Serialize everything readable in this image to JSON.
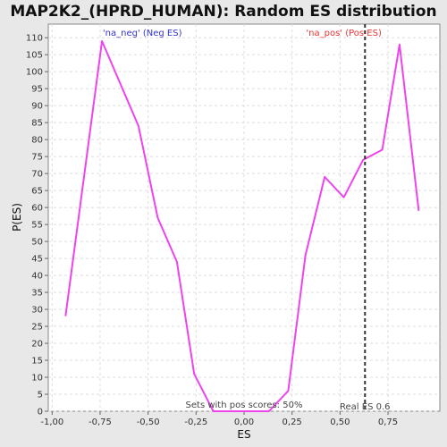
{
  "chart_data": {
    "type": "line",
    "title": "MAP2K2_(HPRD_HUMAN): Random ES distribution",
    "xlabel": "ES",
    "ylabel": "P(ES)",
    "xlim": [
      -1.02,
      1.02
    ],
    "ylim": [
      0,
      114
    ],
    "grid": true,
    "x_ticks": [
      {
        "value": -1.0,
        "label": "-1,00"
      },
      {
        "value": -0.75,
        "label": "-0,75"
      },
      {
        "value": -0.5,
        "label": "-0,50"
      },
      {
        "value": -0.25,
        "label": "-0,25"
      },
      {
        "value": 0.0,
        "label": "0,00"
      },
      {
        "value": 0.25,
        "label": "0,25"
      },
      {
        "value": 0.5,
        "label": "0,50"
      },
      {
        "value": 0.75,
        "label": "0,75"
      }
    ],
    "y_ticks": [
      0,
      5,
      10,
      15,
      20,
      25,
      30,
      35,
      40,
      45,
      50,
      55,
      60,
      65,
      70,
      75,
      80,
      85,
      90,
      95,
      100,
      105,
      110
    ],
    "series": [
      {
        "color": "#ee44ee",
        "x": [
          -0.93,
          -0.74,
          -0.55,
          -0.45,
          -0.35,
          -0.26,
          -0.16,
          0.13,
          0.23,
          0.32,
          0.42,
          0.52,
          0.62,
          0.72,
          0.81,
          0.91
        ],
        "y": [
          28,
          109,
          84,
          57,
          44,
          11,
          0,
          0,
          6,
          46,
          69,
          63,
          74,
          77,
          108,
          59
        ]
      }
    ],
    "real_es": {
      "x": 0.63,
      "label": "Real ES 0.6",
      "color": "#333333"
    },
    "annotations": {
      "neg_label": "'na_neg' (Neg ES)",
      "neg_color": "#3333cc",
      "pos_label": "'na_pos' (Pos ES)",
      "pos_color": "#ee3333",
      "pos_scores": "Sets with pos scores: 50%"
    }
  }
}
